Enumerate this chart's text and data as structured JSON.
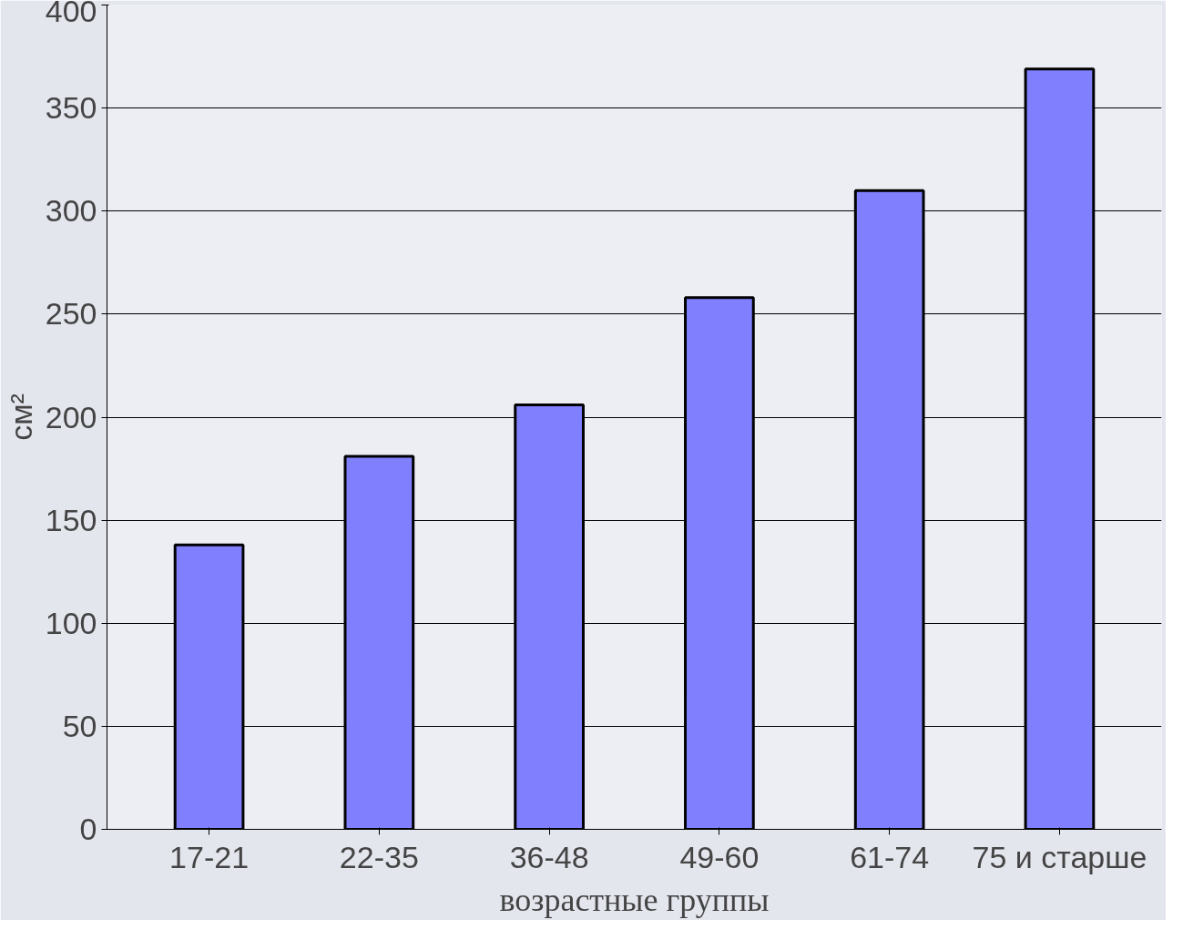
{
  "chart_data": {
    "type": "bar",
    "xlabel": "возрастные группы",
    "ylabel": "см²",
    "categories": [
      "17-21",
      "22-35",
      "36-48",
      "49-60",
      "61-74",
      "75 и старше"
    ],
    "values": [
      138,
      181,
      206,
      258,
      310,
      369
    ],
    "color": "#8080ff",
    "ylim": [
      0,
      400
    ],
    "yticks": [
      0,
      50,
      100,
      150,
      200,
      250,
      300,
      350,
      400
    ],
    "grid": "y"
  }
}
